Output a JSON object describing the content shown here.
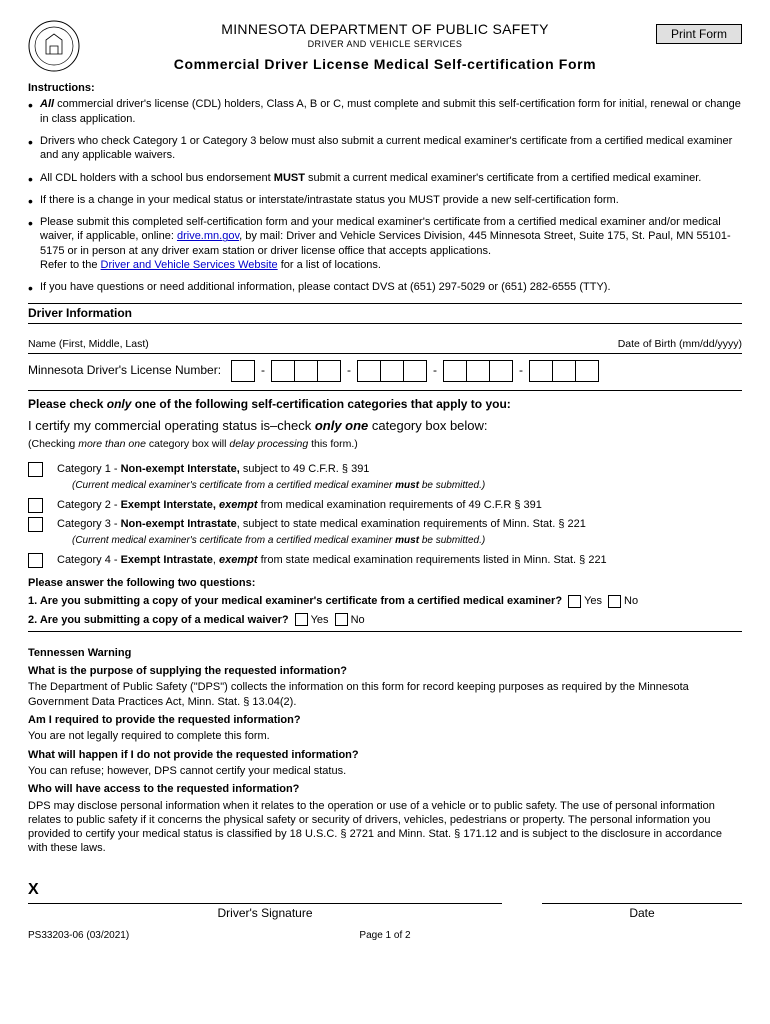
{
  "header": {
    "dept": "MINNESOTA  DEPARTMENT OF PUBLIC SAFETY",
    "sub": "DRIVER AND VEHICLE SERVICES",
    "title": "Commercial Driver License Medical Self-certification Form",
    "print_btn": "Print Form"
  },
  "instructions": {
    "heading": "Instructions:",
    "items": [
      {
        "html": "<strong><em>All</em></strong> commercial driver's license (CDL) holders, Class A, B or C, must complete and submit this self-certification form for initial, renewal or change in class application."
      },
      {
        "html": "Drivers who check Category 1 or Category 3 below must also submit a current medical examiner's certificate from a certified medical examiner and any applicable waivers."
      },
      {
        "html": "All CDL holders with a school bus endorsement <strong>MUST</strong> submit a current medical examiner's certificate from a certified medical examiner."
      },
      {
        "html": "If there is a change in your medical status or interstate/intrastate status you MUST provide a new self-certification form."
      },
      {
        "html": "Please submit this completed self-certification form and your medical examiner's certificate from a certified medical examiner and/or medical waiver, if applicable, online: <a href='#'>drive.mn.gov</a>, by mail: Driver and Vehicle Services Division, 445 Minnesota Street, Suite 175, St. Paul, MN 55101-5175 or in person at any driver exam station or driver license office that accepts applications.<br>Refer to the <a href='#'>Driver and Vehicle Services Website</a> for a list of locations."
      },
      {
        "html": "If you have questions or need additional information, please contact DVS at (651) 297-5029 or (651) 282-6555 (TTY)."
      }
    ]
  },
  "driver_info": {
    "heading": "Driver Information",
    "name_label": "Name (First, Middle, Last)",
    "dob_label": "Date of Birth (mm/dd/yyyy)",
    "dl_label": "Minnesota Driver's License Number:",
    "dl_groups": [
      1,
      3,
      3,
      3,
      3
    ]
  },
  "certification": {
    "h1_html": "Please check <em>only</em> one of the following self-certification categories that apply to you:",
    "h2_html": "I certify my commercial operating status is–check <strong><em>only one</em></strong> category box below:",
    "note_html": "(Checking <em>more than one</em> category box will <em>delay processing</em> this form.)",
    "categories": [
      {
        "label_html": "Category 1 - <strong>Non-exempt Interstate,</strong> subject to 49 C.F.R. § 391",
        "sub_html": "(Current medical examiner's certificate from a certified medical examiner <strong>must</strong> be submitted.)"
      },
      {
        "label_html": "Category 2 - <strong>Exempt Interstate, <em>exempt</em></strong> from medical examination requirements of 49 C.F.R § 391"
      },
      {
        "label_html": "Category 3 - <strong>Non-exempt Intrastate</strong>, subject to state medical examination requirements of Minn. Stat. § 221",
        "sub_html": "(Current medical examiner's certificate from a certified medical examiner <strong>must</strong> be submitted.)"
      },
      {
        "label_html": "Category 4 - <strong>Exempt Intrastate</strong>, <strong><em>exempt</em></strong> from state medical examination requirements listed in Minn. Stat. § 221"
      }
    ]
  },
  "questions": {
    "heading": "Please answer the following two questions:",
    "q1": "1. Are you submitting a copy of your medical examiner's certificate from a certified medical examiner?",
    "q2": "2. Are you submitting a copy of a medical waiver?",
    "yes": "Yes",
    "no": "No"
  },
  "tennessen": {
    "heading": "Tennessen Warning",
    "qa": [
      {
        "q": "What is the purpose of supplying the requested information?",
        "a": "The Department of Public Safety (\"DPS\") collects the information on this form for record keeping purposes as required by the Minnesota Government Data Practices Act, Minn. Stat. § 13.04(2)."
      },
      {
        "q": "Am I required to provide the requested information?",
        "a": "You are not legally required to complete this form."
      },
      {
        "q": "What will happen if I do not provide the requested information?",
        "a": "You can refuse; however, DPS cannot certify your medical status."
      },
      {
        "q": "Who will have access to the requested information?",
        "a": "DPS may disclose personal information when it relates to the operation or use of a vehicle or to public safety.  The use of personal information relates to public safety if it concerns the physical safety or security of drivers, vehicles, pedestrians or property.  The personal information you provided to certify your medical status is classified by 18 U.S.C. § 2721 and Minn. Stat. § 171.12 and is subject to the disclosure in accordance with these laws."
      }
    ]
  },
  "signature": {
    "x": "X",
    "driver_label": "Driver's Signature",
    "date_label": "Date"
  },
  "footer": {
    "form_id": "PS33203-06 (03/2021)",
    "page": "Page 1 of 2"
  }
}
